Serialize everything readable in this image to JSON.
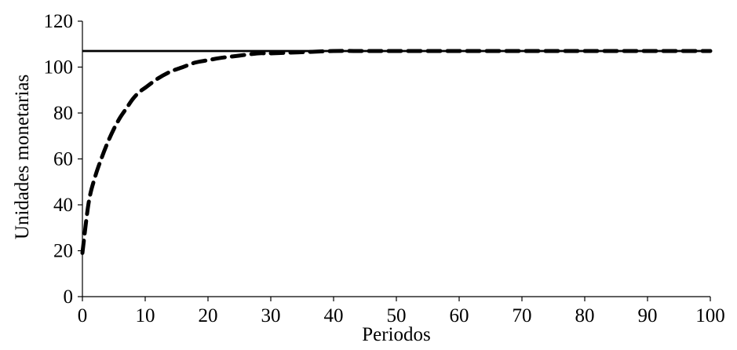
{
  "chart_data": {
    "type": "line",
    "title": "",
    "xlabel": "Periodos",
    "ylabel": "Unidades monetarias",
    "xlim": [
      0,
      100
    ],
    "ylim": [
      0,
      120
    ],
    "x_ticks": [
      0,
      10,
      20,
      30,
      40,
      50,
      60,
      70,
      80,
      90,
      100
    ],
    "y_ticks": [
      0,
      20,
      40,
      60,
      80,
      100,
      120
    ],
    "grid": false,
    "legend": "none",
    "series": [
      {
        "style": "solid",
        "color": "#000000",
        "x": [
          0,
          100
        ],
        "y": [
          107,
          107
        ]
      },
      {
        "style": "dashed",
        "color": "#000000",
        "x": [
          0,
          1,
          2,
          3,
          4,
          5,
          6,
          7,
          8,
          9,
          10,
          12,
          14,
          16,
          18,
          20,
          22,
          25,
          28,
          30,
          35,
          40,
          45,
          50,
          60,
          70,
          80,
          90,
          100
        ],
        "y": [
          19,
          41,
          52,
          60,
          67,
          73,
          78,
          82,
          86,
          89,
          91,
          95,
          98,
          100,
          102,
          103,
          104,
          105,
          106,
          106,
          106.5,
          107,
          107,
          107,
          107,
          107,
          107,
          107,
          107
        ]
      }
    ]
  }
}
